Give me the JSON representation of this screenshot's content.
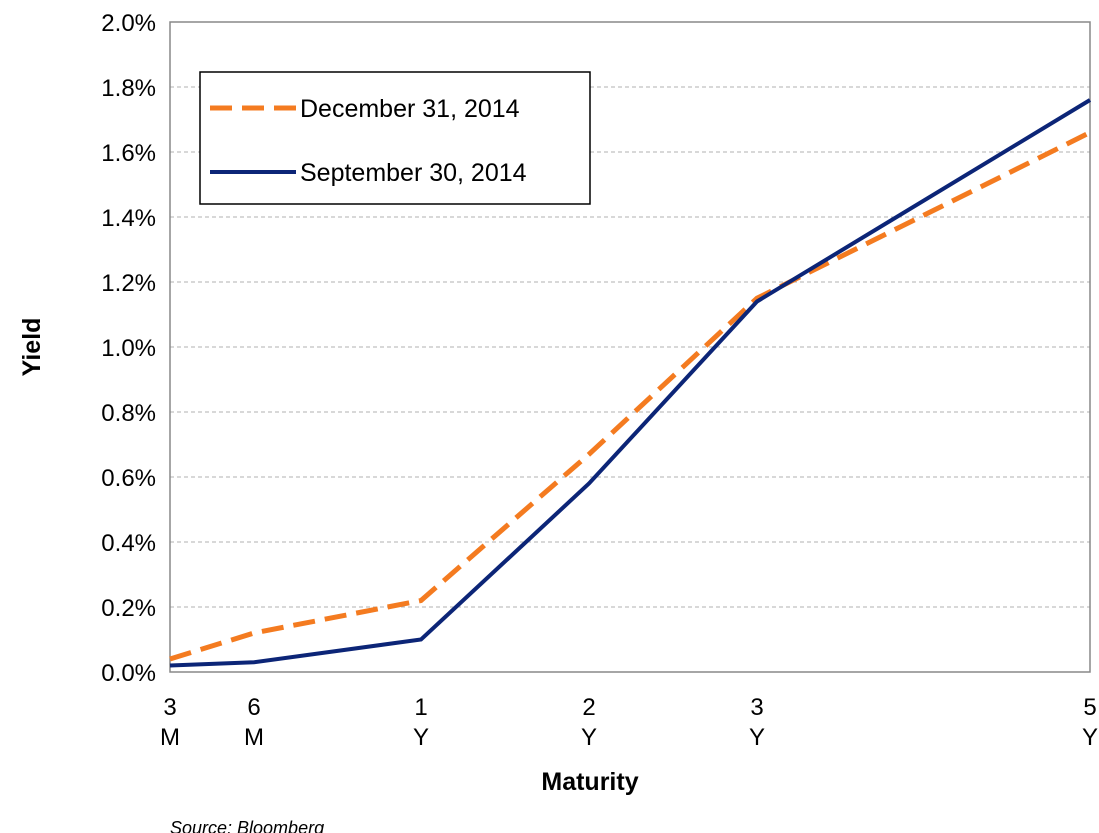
{
  "chart_data": {
    "type": "line",
    "x_label": "Maturity",
    "y_label": "Yield",
    "source": "Source: Bloomberg",
    "categories": [
      "3\nM",
      "6\nM",
      "1\nY",
      "2\nY",
      "3\nY",
      "5\nY"
    ],
    "series": [
      {
        "name": "December 31, 2014",
        "color": "#f47b20",
        "dash": true,
        "values": [
          0.04,
          0.12,
          0.22,
          0.67,
          1.15,
          1.66
        ]
      },
      {
        "name": "September 30, 2014",
        "color": "#0c2577",
        "dash": false,
        "values": [
          0.02,
          0.03,
          0.1,
          0.58,
          1.14,
          1.76
        ]
      }
    ],
    "ylim": [
      0,
      2
    ],
    "yticks": [
      {
        "value": 0,
        "label": "0.0%"
      },
      {
        "value": 0.2,
        "label": "0.2%"
      },
      {
        "value": 0.4,
        "label": "0.4%"
      },
      {
        "value": 0.6,
        "label": "0.6%"
      },
      {
        "value": 0.8,
        "label": "0.8%"
      },
      {
        "value": 1,
        "label": "1.0%"
      },
      {
        "value": 1.2,
        "label": "1.2%"
      },
      {
        "value": 1.4,
        "label": "1.4%"
      },
      {
        "value": 1.6,
        "label": "1.6%"
      },
      {
        "value": 1.8,
        "label": "1.8%"
      },
      {
        "value": 2,
        "label": "2.0%"
      }
    ],
    "grid": true,
    "legend": "upper left"
  }
}
